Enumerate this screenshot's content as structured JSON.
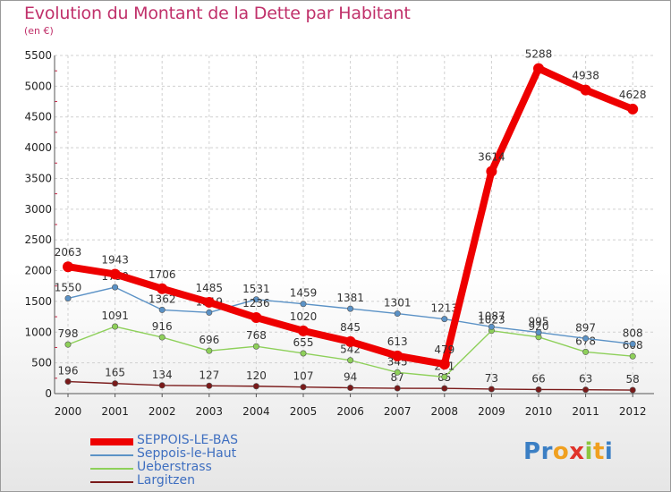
{
  "title": "Evolution du Montant de la Dette par Habitant",
  "unit": "(en €)",
  "chart_data": {
    "type": "line",
    "x": [
      "2000",
      "2001",
      "2002",
      "2003",
      "2004",
      "2005",
      "2006",
      "2007",
      "2008",
      "2009",
      "2010",
      "2011",
      "2012"
    ],
    "ylim": [
      0,
      5500
    ],
    "yticks": [
      0,
      500,
      1000,
      1500,
      2000,
      2500,
      3000,
      3500,
      4000,
      4500,
      5000,
      5500
    ],
    "grid": true,
    "legend_position": "bottom-left",
    "series": [
      {
        "name": "SEPPOIS-LE-BAS",
        "color": "#ee0000",
        "values": [
          2063,
          1943,
          1706,
          1485,
          1236,
          1020,
          845,
          613,
          479,
          3614,
          5288,
          4938,
          4628
        ]
      },
      {
        "name": "Seppois-le-Haut",
        "color": "#5b92c6",
        "values": [
          1550,
          1730,
          1362,
          1319,
          1531,
          1459,
          1381,
          1301,
          1213,
          1087,
          995,
          897,
          808
        ]
      },
      {
        "name": "Ueberstrass",
        "color": "#8ed05a",
        "values": [
          798,
          1091,
          916,
          696,
          768,
          655,
          542,
          345,
          271,
          1023,
          920,
          678,
          608
        ]
      },
      {
        "name": "Largitzen",
        "color": "#7a1a1a",
        "values": [
          196,
          165,
          134,
          127,
          120,
          107,
          94,
          87,
          85,
          73,
          66,
          63,
          58
        ]
      }
    ]
  },
  "brand": {
    "letters": [
      "P",
      "r",
      "o",
      "x",
      "i",
      "t",
      "i"
    ],
    "colors": [
      "#3b7fc4",
      "#3b7fc4",
      "#f0a020",
      "#e0332a",
      "#8cc63f",
      "#f0a020",
      "#3b7fc4"
    ]
  }
}
